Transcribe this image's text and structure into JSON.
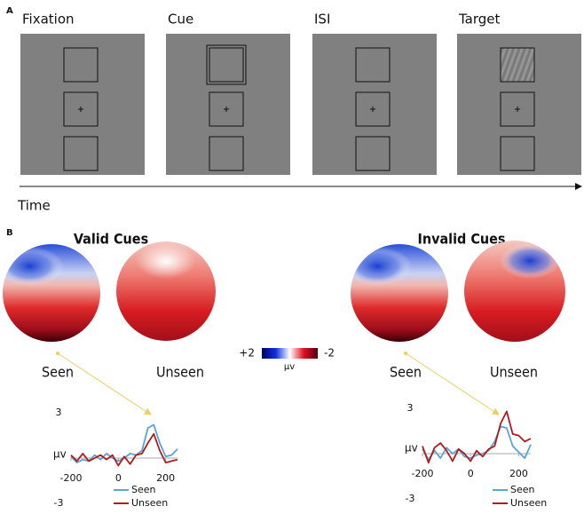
{
  "panel_a": {
    "label": "A",
    "frames": [
      {
        "title": "Fixation"
      },
      {
        "title": "Cue"
      },
      {
        "title": "ISI"
      },
      {
        "title": "Target"
      }
    ],
    "time_label": "Time"
  },
  "panel_b": {
    "label": "B",
    "colorbar": {
      "max_label": "+2",
      "min_label": "-2",
      "unit": "µv"
    },
    "groups": [
      {
        "title": "Valid Cues",
        "maps": [
          "Seen",
          "Unseen"
        ],
        "chart": {
          "type": "line",
          "y_label": "µv",
          "x": [
            -200,
            -175,
            -150,
            -125,
            -100,
            -75,
            -50,
            -25,
            0,
            25,
            50,
            75,
            100,
            125,
            150,
            175,
            200,
            225,
            250
          ],
          "xlim": [
            -200,
            250
          ],
          "ylim": [
            -3,
            3
          ],
          "xticks": [
            -200,
            0,
            200
          ],
          "yticks": [
            -3,
            3
          ],
          "series": [
            {
              "name": "Seen",
              "color": "#5aa3d6",
              "values": [
                0.1,
                -0.3,
                -0.1,
                -0.2,
                0.2,
                -0.1,
                0.3,
                0,
                -0.2,
                0,
                0.3,
                0.2,
                0.5,
                2.0,
                2.2,
                1.0,
                0.1,
                0.2,
                0.6
              ]
            },
            {
              "name": "Unseen",
              "color": "#b01c1c",
              "values": [
                0.2,
                -0.2,
                0.3,
                -0.2,
                0,
                0.2,
                -0.1,
                0.2,
                -0.5,
                0.1,
                -0.4,
                0.2,
                0.3,
                1.0,
                1.6,
                0.5,
                -0.3,
                -0.2,
                -0.1
              ]
            }
          ]
        }
      },
      {
        "title": "Invalid Cues",
        "maps": [
          "Seen",
          "Unseen"
        ],
        "chart": {
          "type": "line",
          "y_label": "µv",
          "x": [
            -200,
            -175,
            -150,
            -125,
            -100,
            -75,
            -50,
            -25,
            0,
            25,
            50,
            75,
            100,
            125,
            150,
            175,
            200,
            225,
            250
          ],
          "xlim": [
            -200,
            250
          ],
          "ylim": [
            -3,
            3
          ],
          "xticks": [
            -200,
            0,
            200
          ],
          "yticks": [
            -3,
            3
          ],
          "series": [
            {
              "name": "Seen",
              "color": "#5aa3d6",
              "values": [
                0.3,
                -0.4,
                0.2,
                -0.3,
                0.4,
                0,
                0.3,
                -0.2,
                -0.3,
                -0.1,
                0,
                0.2,
                0.8,
                1.8,
                1.7,
                0.5,
                0.1,
                -0.3,
                0.6
              ]
            },
            {
              "name": "Unseen",
              "color": "#b01c1c",
              "values": [
                0.5,
                -0.6,
                0.4,
                0.7,
                0.2,
                -0.5,
                0.3,
                0,
                -0.5,
                0.2,
                -0.2,
                0.3,
                0.5,
                2.0,
                2.8,
                1.3,
                1.2,
                0.8,
                1.0
              ]
            }
          ]
        }
      }
    ]
  }
}
